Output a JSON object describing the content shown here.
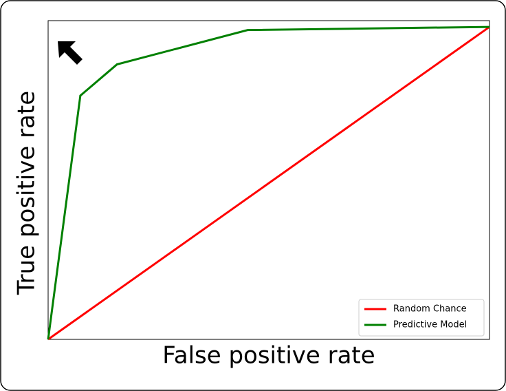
{
  "chart_data": {
    "type": "line",
    "x_label": "False positive rate",
    "y_label": "True positive rate",
    "xlim": [
      0,
      1
    ],
    "ylim": [
      0,
      1.02
    ],
    "legend": "lower right",
    "series": [
      {
        "name": "Random Chance",
        "color": "#ff0000",
        "x": [
          0,
          1
        ],
        "values": [
          0,
          1
        ]
      },
      {
        "name": "Predictive Model",
        "color": "#008000",
        "x": [
          0,
          0.073,
          0.156,
          0.452,
          1
        ],
        "values": [
          0,
          0.78,
          0.88,
          0.99,
          1
        ]
      }
    ]
  }
}
